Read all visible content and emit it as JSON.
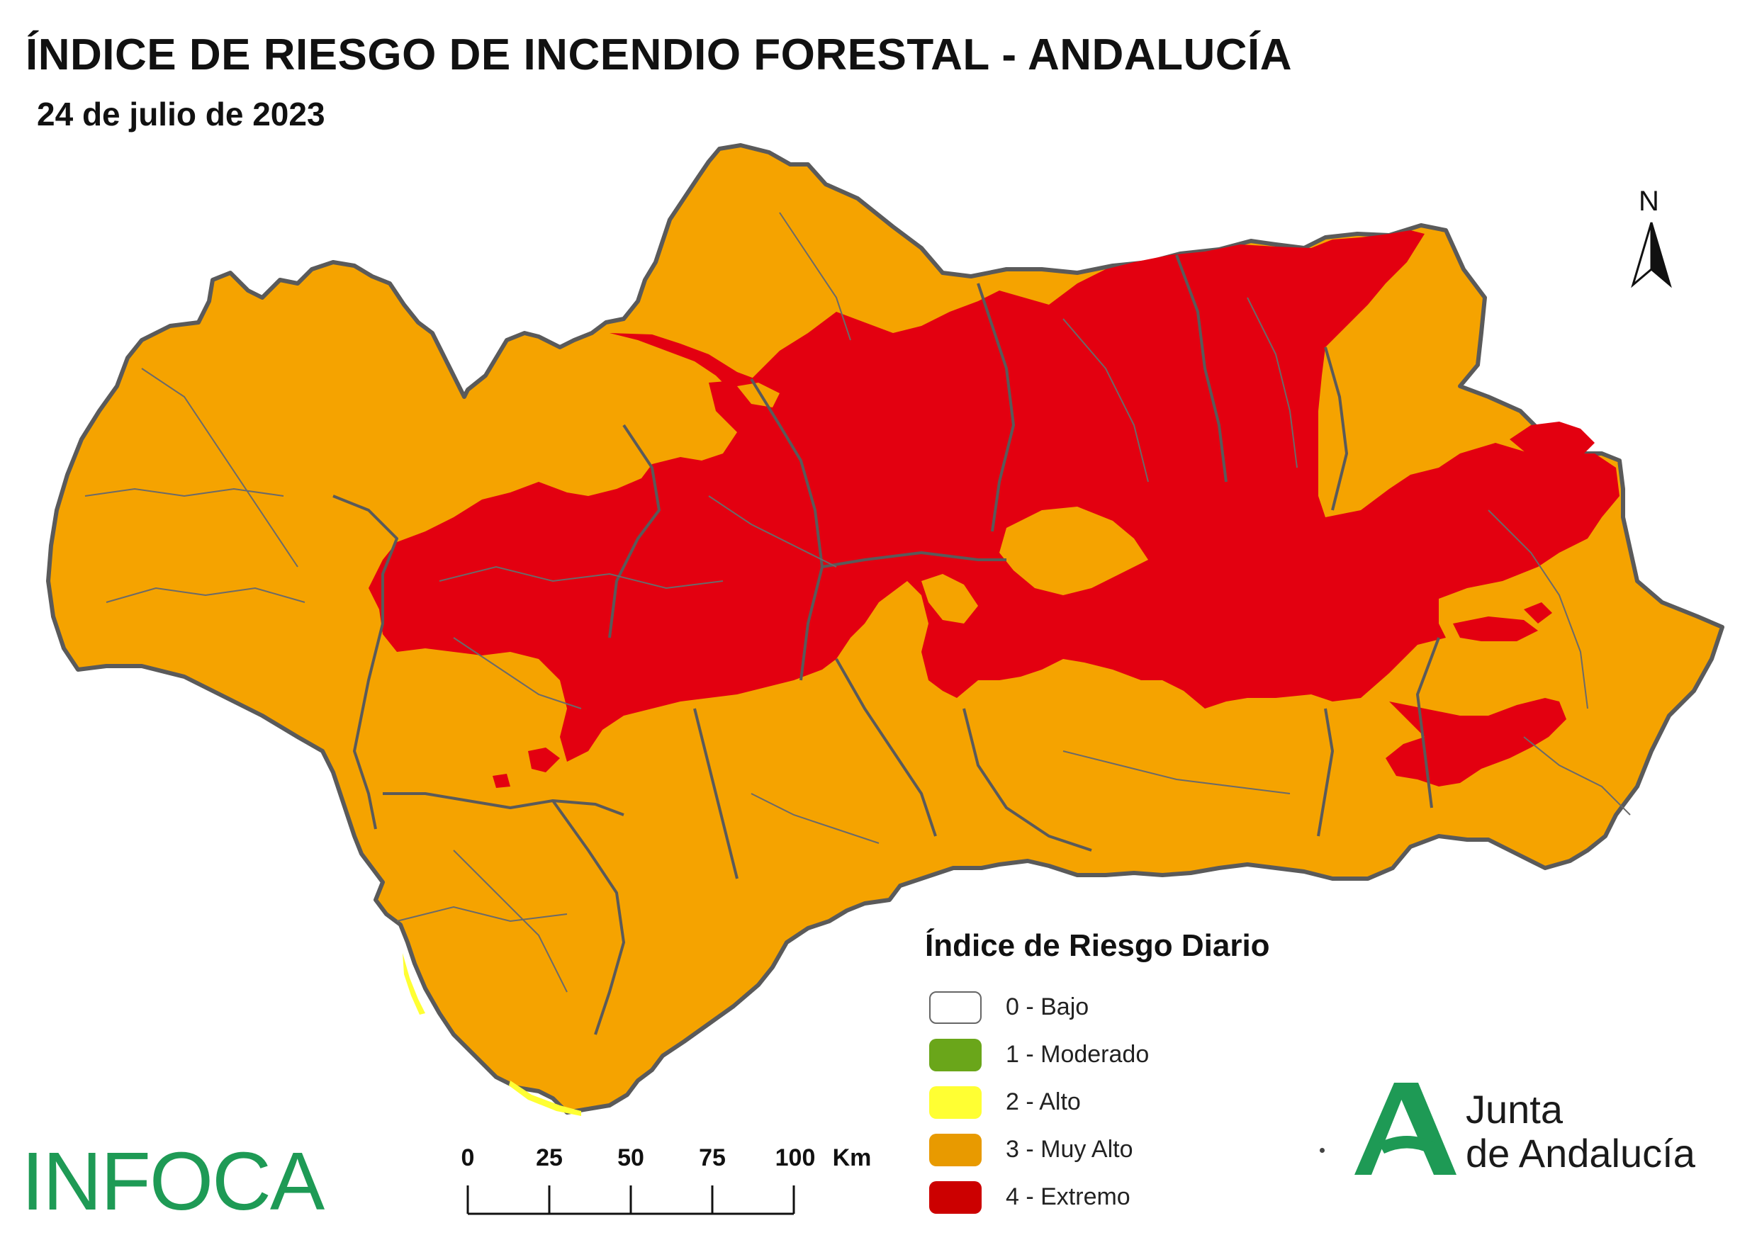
{
  "header": {
    "title": "ÍNDICE DE RIESGO DE INCENDIO FORESTAL - ANDALUCÍA",
    "date": "24 de julio de 2023"
  },
  "north_arrow": {
    "label": "N"
  },
  "legend": {
    "title": "Índice de Riesgo Diario",
    "items": [
      {
        "label": "0 - Bajo",
        "color": "#ffffff"
      },
      {
        "label": "1 - Moderado",
        "color": "#6aa61a"
      },
      {
        "label": "2 - Alto",
        "color": "#ffff33"
      },
      {
        "label": "3 - Muy Alto",
        "color": "#f0a000"
      },
      {
        "label": "4 - Extremo",
        "color": "#e10000"
      }
    ]
  },
  "scale_bar": {
    "ticks": [
      "0",
      "25",
      "50",
      "75",
      "100"
    ],
    "unit": "Km"
  },
  "map": {
    "region": "Andalucía",
    "risk_colors": {
      "muy_alto": "#f5a300",
      "extremo": "#e30010",
      "alto": "#ffff33",
      "boundaries": "#5a5a5a"
    }
  },
  "logos": {
    "left": "INFOCA",
    "right_line1": "Junta",
    "right_line2": "de Andalucía",
    "brand_color": "#1e9a55"
  }
}
